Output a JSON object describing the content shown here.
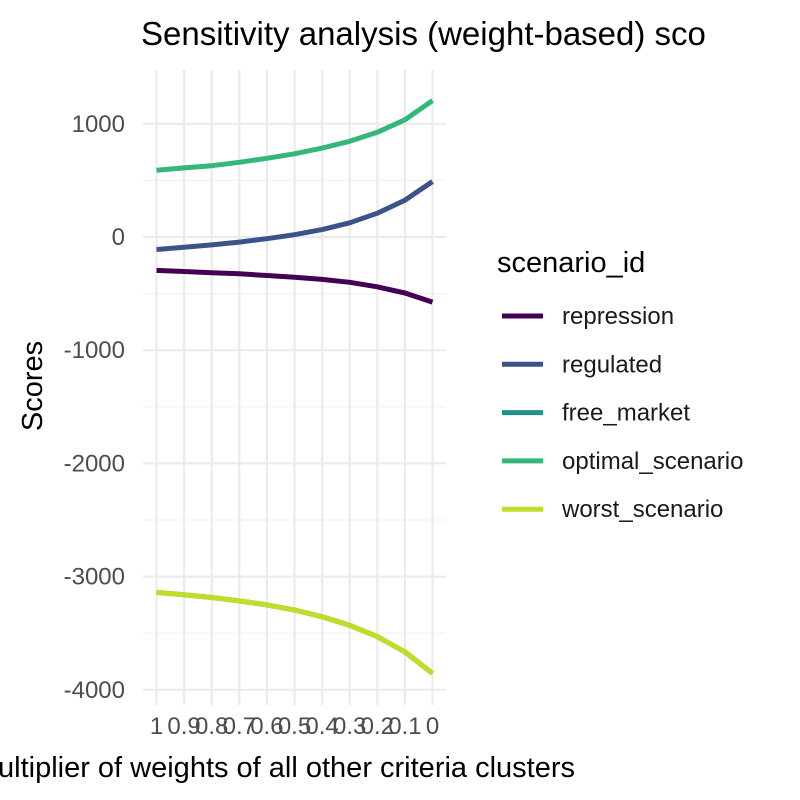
{
  "chart_data": {
    "type": "line",
    "title": "Sensitivity analysis (weight-based) sco",
    "xlabel": "ultiplier of weights of all other criteria clusters",
    "ylabel": "Scores",
    "x": [
      1,
      0.9,
      0.8,
      0.7,
      0.6,
      0.5,
      0.4,
      0.3,
      0.2,
      0.1,
      0
    ],
    "x_tick_labels": [
      "1",
      "0.9",
      "0.8",
      "0.7",
      "0.6",
      "0.5",
      "0.4",
      "0.3",
      "0.2",
      "0.1",
      "0"
    ],
    "x_tick_display": [
      "1",
      "0.9",
      "0.8",
      "0.7",
      "0.6",
      "0.5",
      "0.4",
      "0.3",
      "0.2",
      "0.1",
      "0"
    ],
    "x_reversed": true,
    "ylim": [
      -4100,
      1420
    ],
    "y_ticks": [
      1000,
      0,
      -1000,
      -2000,
      -3000,
      -4000
    ],
    "y_tick_labels": [
      "1000",
      "0",
      "-1000",
      "-2000",
      "-3000",
      "-4000"
    ],
    "grid": true,
    "legend": {
      "title": "scenario_id",
      "position": "right"
    },
    "series": [
      {
        "name": "repression",
        "color": "#440154",
        "values": [
          -295,
          -305,
          -315,
          -325,
          -340,
          -355,
          -375,
          -400,
          -440,
          -495,
          -575
        ]
      },
      {
        "name": "regulated",
        "color": "#3b528b",
        "values": [
          -110,
          -90,
          -70,
          -45,
          -15,
          20,
          65,
          125,
          210,
          325,
          490
        ]
      },
      {
        "name": "free_market",
        "color": "#21918c",
        "values": [
          -3140,
          -3160,
          -3185,
          -3215,
          -3250,
          -3295,
          -3355,
          -3430,
          -3530,
          -3665,
          -3855
        ]
      },
      {
        "name": "optimal_scenario",
        "color": "#35b779",
        "values": [
          590,
          610,
          630,
          660,
          695,
          735,
          785,
          845,
          925,
          1035,
          1205
        ]
      },
      {
        "name": "worst_scenario",
        "color": "#bddf26",
        "values": [
          -3140,
          -3160,
          -3185,
          -3215,
          -3250,
          -3295,
          -3355,
          -3430,
          -3530,
          -3665,
          -3855
        ]
      }
    ]
  }
}
